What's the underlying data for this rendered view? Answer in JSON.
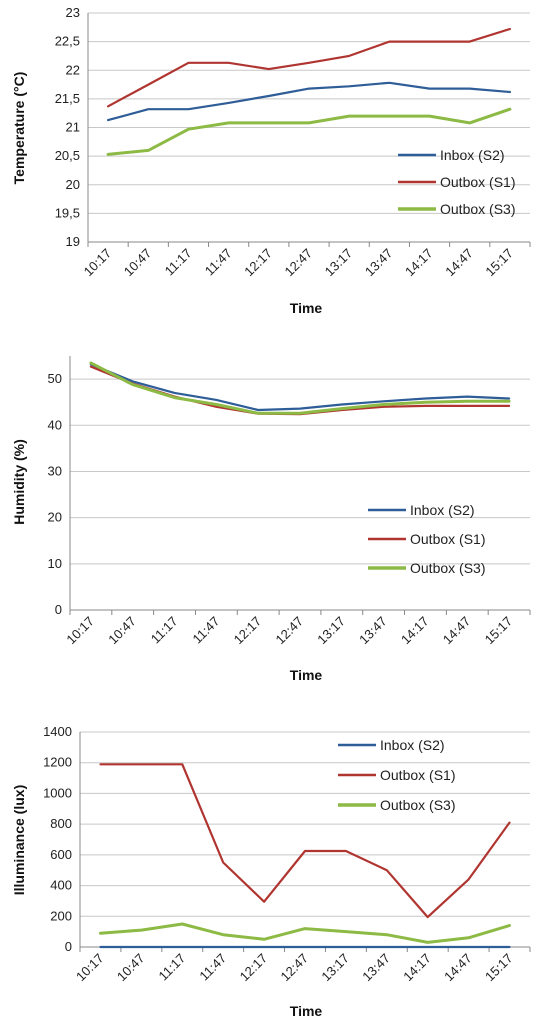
{
  "chart_data": [
    {
      "type": "line",
      "xlabel": "Time",
      "ylabel": "Temperature (°C)",
      "ylim": [
        19,
        23
      ],
      "yticks": [
        19,
        19.5,
        20,
        20.5,
        21,
        21.5,
        22,
        22.5,
        23
      ],
      "ytick_labels": [
        "19",
        "19,5",
        "20",
        "20,5",
        "21",
        "21,5",
        "22",
        "22,5",
        "23"
      ],
      "categories": [
        "10:17",
        "10:47",
        "11:17",
        "11:47",
        "12:17",
        "12:47",
        "13:17",
        "13:47",
        "14:17",
        "14:47",
        "15:17"
      ],
      "grid": true,
      "legend_position": "right",
      "series": [
        {
          "name": "Inbox (S2)",
          "color": "#2e5d98",
          "values": [
            21.13,
            21.32,
            21.32,
            21.43,
            21.55,
            21.68,
            21.72,
            21.78,
            21.68,
            21.68,
            21.62
          ]
        },
        {
          "name": "Outbox (S1)",
          "color": "#b03530",
          "values": [
            21.37,
            21.75,
            22.13,
            22.13,
            22.02,
            22.13,
            22.25,
            22.5,
            22.5,
            22.5,
            22.72
          ]
        },
        {
          "name": "Outbox (S3)",
          "color": "#8dba45",
          "values": [
            20.53,
            20.6,
            20.97,
            21.08,
            21.08,
            21.08,
            21.2,
            21.2,
            21.2,
            21.08,
            21.32
          ]
        }
      ]
    },
    {
      "type": "line",
      "xlabel": "Time",
      "ylabel": "Humidity (%)",
      "ylim": [
        0,
        55
      ],
      "yticks": [
        0,
        10,
        20,
        30,
        40,
        50
      ],
      "ytick_labels": [
        "0",
        "10",
        "20",
        "30",
        "40",
        "50"
      ],
      "categories": [
        "10:17",
        "10:47",
        "11:17",
        "11:47",
        "12:17",
        "12:47",
        "13:17",
        "13:47",
        "14:17",
        "14:47",
        "15:17"
      ],
      "grid": true,
      "legend_position": "bottom-right",
      "series": [
        {
          "name": "Inbox (S2)",
          "color": "#2e5d98",
          "values": [
            53.2,
            49.5,
            47.0,
            45.5,
            43.3,
            43.6,
            44.5,
            45.2,
            45.8,
            46.2,
            45.8
          ]
        },
        {
          "name": "Outbox (S1)",
          "color": "#b03530",
          "values": [
            52.7,
            49.0,
            46.2,
            44.0,
            42.5,
            42.4,
            43.3,
            44.0,
            44.2,
            44.2,
            44.2
          ]
        },
        {
          "name": "Outbox (S3)",
          "color": "#8dba45",
          "values": [
            53.5,
            48.8,
            46.0,
            44.5,
            42.6,
            42.6,
            43.6,
            44.5,
            45.0,
            45.2,
            45.2
          ]
        }
      ]
    },
    {
      "type": "line",
      "xlabel": "Time",
      "ylabel": "Illuminance (lux)",
      "ylim": [
        0,
        1400
      ],
      "yticks": [
        0,
        200,
        400,
        600,
        800,
        1000,
        1200,
        1400
      ],
      "ytick_labels": [
        "0",
        "200",
        "400",
        "600",
        "800",
        "1000",
        "1200",
        "1400"
      ],
      "categories": [
        "10:17",
        "10:47",
        "11:17",
        "11:47",
        "12:17",
        "12:47",
        "13:17",
        "13:47",
        "14:17",
        "14:47",
        "15:17"
      ],
      "grid": true,
      "legend_position": "top-right",
      "series": [
        {
          "name": "Inbox (S2)",
          "color": "#2e5d98",
          "values": [
            0,
            0,
            0,
            0,
            0,
            0,
            0,
            0,
            0,
            0,
            0
          ]
        },
        {
          "name": "Outbox (S1)",
          "color": "#b03530",
          "values": [
            1190,
            1190,
            1190,
            550,
            295,
            625,
            625,
            500,
            195,
            440,
            810
          ]
        },
        {
          "name": "Outbox (S3)",
          "color": "#8dba45",
          "values": [
            90,
            110,
            150,
            80,
            50,
            120,
            100,
            80,
            30,
            60,
            140
          ]
        }
      ]
    }
  ]
}
